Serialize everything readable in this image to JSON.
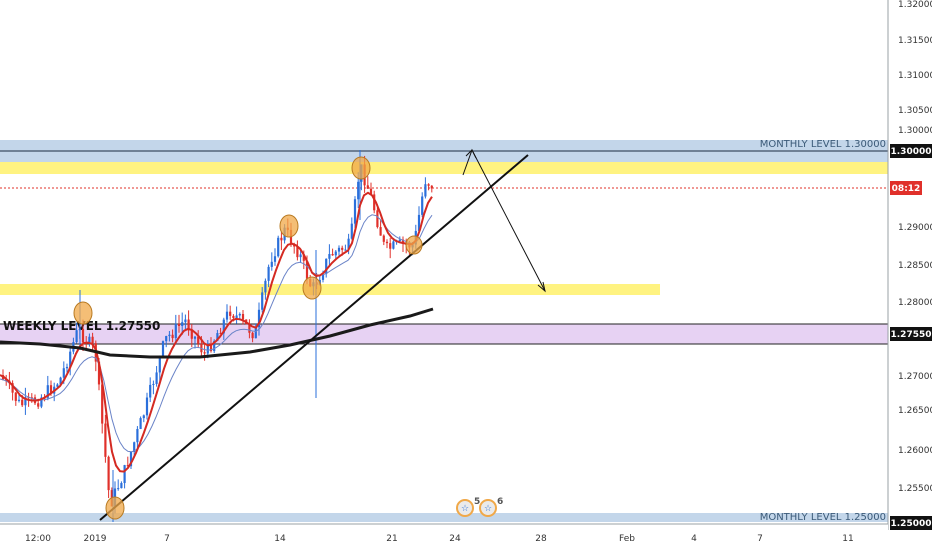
{
  "chart_data": {
    "type": "candlestick",
    "y_ticks": [
      "1.32000",
      "1.31500",
      "1.31000",
      "1.30500",
      "1.30000",
      "1.29500",
      "1.29000",
      "1.28500",
      "1.28000",
      "1.27550",
      "1.27000",
      "1.26500",
      "1.26000",
      "1.25500",
      "1.25000"
    ],
    "x_ticks": [
      "12:00",
      "2019",
      "7",
      "14",
      "21",
      "24",
      "28",
      "Feb",
      "4",
      "7",
      "11"
    ],
    "monthly_level_top": "MONTHLY LEVEL 1.30000",
    "monthly_level_bottom": "MONTHLY LEVEL 1.25000",
    "weekly_level": "WEEKLY LEVEL 1.27550",
    "price_tag_top": "1.30000",
    "price_tag_countdown": "08:12",
    "price_tag_weekly": "1.27550",
    "price_tag_bottom": "1.25000",
    "event_badges": [
      "5",
      "6"
    ],
    "colors": {
      "bull": "#2a6fdb",
      "bear": "#e0302a",
      "monthly_zone": "#b8cfe6",
      "weekly_zone": "#e4cdf2",
      "supply_zone": "#fff27a",
      "ma_fast": "#d42a22",
      "ma_slow": "#6b84c8",
      "ma_long": "#1a1a1a",
      "current_price": "#e0302a"
    }
  }
}
